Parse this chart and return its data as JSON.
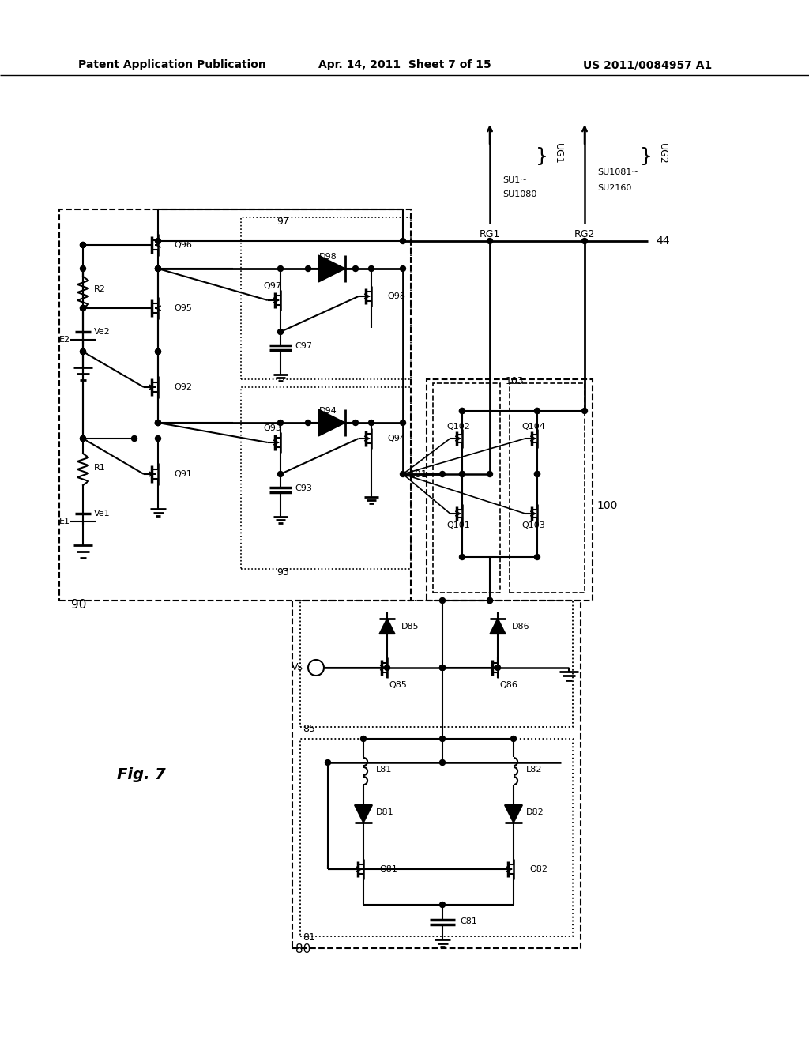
{
  "title_left": "Patent Application Publication",
  "title_center": "Apr. 14, 2011  Sheet 7 of 15",
  "title_right": "US 2011/0084957 A1",
  "fig_label": "Fig. 7",
  "background": "#ffffff"
}
